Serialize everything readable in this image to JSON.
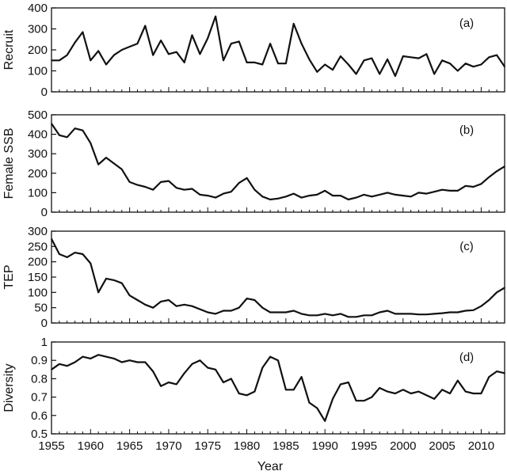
{
  "chart_data": [
    {
      "type": "line",
      "panel_label": "(a)",
      "ylabel": "Recruit",
      "xlim": [
        1955,
        2013
      ],
      "ylim": [
        0,
        400
      ],
      "yticks": [
        "0",
        "100",
        "200",
        "300",
        "400"
      ],
      "x": [
        1955,
        1956,
        1957,
        1958,
        1959,
        1960,
        1961,
        1962,
        1963,
        1964,
        1965,
        1966,
        1967,
        1968,
        1969,
        1970,
        1971,
        1972,
        1973,
        1974,
        1975,
        1976,
        1977,
        1978,
        1979,
        1980,
        1981,
        1982,
        1983,
        1984,
        1985,
        1986,
        1987,
        1988,
        1989,
        1990,
        1991,
        1992,
        1993,
        1994,
        1995,
        1996,
        1997,
        1998,
        1999,
        2000,
        2001,
        2002,
        2003,
        2004,
        2005,
        2006,
        2007,
        2008,
        2009,
        2010,
        2011,
        2012,
        2013
      ],
      "values": [
        150,
        150,
        175,
        235,
        285,
        150,
        195,
        130,
        175,
        200,
        215,
        230,
        315,
        175,
        245,
        180,
        190,
        140,
        270,
        180,
        255,
        360,
        150,
        230,
        240,
        140,
        140,
        130,
        230,
        135,
        135,
        325,
        230,
        155,
        95,
        130,
        105,
        170,
        130,
        85,
        150,
        160,
        85,
        155,
        75,
        170,
        165,
        160,
        180,
        85,
        150,
        135,
        100,
        135,
        120,
        130,
        165,
        175,
        120
      ]
    },
    {
      "type": "line",
      "panel_label": "(b)",
      "ylabel": "Female SSB",
      "xlim": [
        1955,
        2013
      ],
      "ylim": [
        0,
        500
      ],
      "yticks": [
        "0",
        "100",
        "200",
        "300",
        "400",
        "500"
      ],
      "x": [
        1955,
        1956,
        1957,
        1958,
        1959,
        1960,
        1961,
        1962,
        1963,
        1964,
        1965,
        1966,
        1967,
        1968,
        1969,
        1970,
        1971,
        1972,
        1973,
        1974,
        1975,
        1976,
        1977,
        1978,
        1979,
        1980,
        1981,
        1982,
        1983,
        1984,
        1985,
        1986,
        1987,
        1988,
        1989,
        1990,
        1991,
        1992,
        1993,
        1994,
        1995,
        1996,
        1997,
        1998,
        1999,
        2000,
        2001,
        2002,
        2003,
        2004,
        2005,
        2006,
        2007,
        2008,
        2009,
        2010,
        2011,
        2012,
        2013
      ],
      "values": [
        455,
        395,
        385,
        430,
        420,
        355,
        245,
        280,
        250,
        220,
        155,
        140,
        130,
        115,
        155,
        160,
        125,
        115,
        120,
        90,
        85,
        75,
        95,
        105,
        150,
        175,
        115,
        80,
        65,
        70,
        80,
        95,
        75,
        85,
        90,
        110,
        85,
        85,
        65,
        75,
        90,
        80,
        90,
        100,
        90,
        85,
        80,
        100,
        95,
        105,
        115,
        110,
        110,
        135,
        130,
        145,
        180,
        210,
        235
      ]
    },
    {
      "type": "line",
      "panel_label": "(c)",
      "ylabel": "TEP",
      "xlim": [
        1955,
        2013
      ],
      "ylim": [
        0,
        300
      ],
      "yticks": [
        "0",
        "50",
        "100",
        "150",
        "200",
        "250",
        "300"
      ],
      "x": [
        1955,
        1956,
        1957,
        1958,
        1959,
        1960,
        1961,
        1962,
        1963,
        1964,
        1965,
        1966,
        1967,
        1968,
        1969,
        1970,
        1971,
        1972,
        1973,
        1974,
        1975,
        1976,
        1977,
        1978,
        1979,
        1980,
        1981,
        1982,
        1983,
        1984,
        1985,
        1986,
        1987,
        1988,
        1989,
        1990,
        1991,
        1992,
        1993,
        1994,
        1995,
        1996,
        1997,
        1998,
        1999,
        2000,
        2001,
        2002,
        2003,
        2004,
        2005,
        2006,
        2007,
        2008,
        2009,
        2010,
        2011,
        2012,
        2013
      ],
      "values": [
        275,
        225,
        215,
        230,
        225,
        195,
        100,
        145,
        140,
        130,
        90,
        75,
        60,
        50,
        70,
        75,
        55,
        60,
        55,
        45,
        35,
        30,
        40,
        40,
        50,
        80,
        75,
        50,
        35,
        35,
        35,
        40,
        30,
        25,
        25,
        30,
        25,
        30,
        20,
        20,
        25,
        25,
        35,
        40,
        30,
        30,
        30,
        28,
        28,
        30,
        32,
        35,
        35,
        40,
        42,
        55,
        75,
        100,
        115
      ]
    },
    {
      "type": "line",
      "panel_label": "(d)",
      "ylabel": "Diversity",
      "xlabel": "Year",
      "xlim": [
        1955,
        2013
      ],
      "ylim": [
        0.5,
        1
      ],
      "yticks": [
        "0.5",
        "0.6",
        "0.7",
        "0.8",
        "0.9",
        "1"
      ],
      "xticks": [
        "1955",
        "1960",
        "1965",
        "1970",
        "1975",
        "1980",
        "1985",
        "1990",
        "1995",
        "2000",
        "2005",
        "2010"
      ],
      "x": [
        1955,
        1956,
        1957,
        1958,
        1959,
        1960,
        1961,
        1962,
        1963,
        1964,
        1965,
        1966,
        1967,
        1968,
        1969,
        1970,
        1971,
        1972,
        1973,
        1974,
        1975,
        1976,
        1977,
        1978,
        1979,
        1980,
        1981,
        1982,
        1983,
        1984,
        1985,
        1986,
        1987,
        1988,
        1989,
        1990,
        1991,
        1992,
        1993,
        1994,
        1995,
        1996,
        1997,
        1998,
        1999,
        2000,
        2001,
        2002,
        2003,
        2004,
        2005,
        2006,
        2007,
        2008,
        2009,
        2010,
        2011,
        2012,
        2013
      ],
      "values": [
        0.85,
        0.88,
        0.87,
        0.89,
        0.92,
        0.91,
        0.93,
        0.92,
        0.91,
        0.89,
        0.9,
        0.89,
        0.89,
        0.84,
        0.76,
        0.78,
        0.77,
        0.83,
        0.88,
        0.9,
        0.86,
        0.85,
        0.78,
        0.8,
        0.72,
        0.71,
        0.73,
        0.86,
        0.92,
        0.9,
        0.74,
        0.74,
        0.81,
        0.67,
        0.64,
        0.57,
        0.69,
        0.77,
        0.78,
        0.68,
        0.68,
        0.7,
        0.75,
        0.73,
        0.72,
        0.74,
        0.72,
        0.73,
        0.71,
        0.69,
        0.74,
        0.72,
        0.79,
        0.73,
        0.72,
        0.72,
        0.81,
        0.84,
        0.83
      ]
    }
  ]
}
